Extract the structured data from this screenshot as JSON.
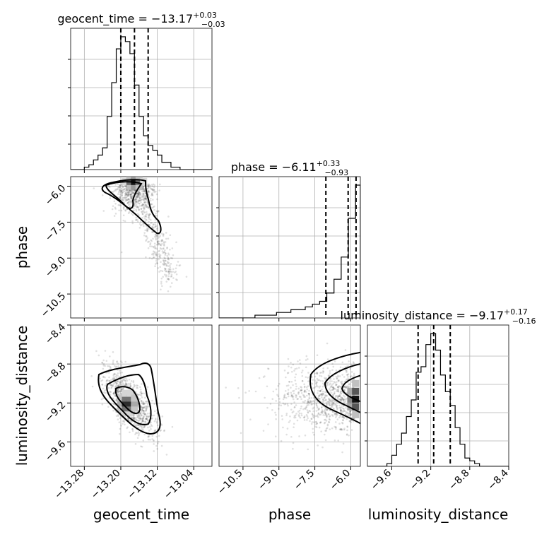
{
  "chart_data": {
    "type": "corner",
    "parameters": [
      "geocent_time",
      "phase",
      "luminosity_distance"
    ],
    "titles": [
      {
        "name": "geocent_time",
        "value": "−13.17",
        "upper": "+0.03",
        "lower": "−0.03"
      },
      {
        "name": "phase",
        "value": "−6.11",
        "upper": "+0.33",
        "lower": "−0.93"
      },
      {
        "name": "luminosity_distance",
        "value": "−9.17",
        "upper": "+0.17",
        "lower": "−0.16"
      }
    ],
    "axes": {
      "geocent_time": {
        "range": [
          -13.31,
          -13.0
        ],
        "ticks": [
          -13.28,
          -13.2,
          -13.12,
          -13.04
        ],
        "tick_labels": [
          "−13.28",
          "−13.20",
          "−13.12",
          "−13.04"
        ]
      },
      "phase": {
        "range": [
          -11.5,
          -5.6
        ],
        "ticks": [
          -10.5,
          -9.0,
          -7.5,
          -6.0
        ],
        "tick_labels": [
          "−10.5",
          "−9.0",
          "−7.5",
          "−6.0"
        ]
      },
      "luminosity_distance": {
        "range": [
          -9.85,
          -8.4
        ],
        "ticks": [
          -9.6,
          -9.2,
          -8.8,
          -8.4
        ],
        "tick_labels": [
          "−9.6",
          "−9.2",
          "−8.8",
          "−8.4"
        ]
      }
    },
    "quantiles": {
      "geocent_time": [
        -13.2,
        -13.17,
        -13.14
      ],
      "phase": [
        -7.04,
        -6.11,
        -5.78
      ],
      "luminosity_distance": [
        -9.33,
        -9.17,
        -9.0
      ]
    },
    "histograms": {
      "geocent_time": {
        "edges": [
          -13.31,
          -13.3,
          -13.29,
          -13.28,
          -13.27,
          -13.26,
          -13.25,
          -13.24,
          -13.23,
          -13.22,
          -13.21,
          -13.2,
          -13.19,
          -13.18,
          -13.17,
          -13.16,
          -13.15,
          -13.14,
          -13.13,
          -13.12,
          -13.11,
          -13.1,
          -13.09,
          -13.08,
          -13.07,
          -13.06,
          -13.05,
          -13.04,
          -13.03,
          -13.02,
          -13.01,
          -13.0
        ],
        "counts": [
          0,
          0,
          0,
          1,
          2,
          4,
          6,
          9,
          22,
          36,
          50,
          55,
          53,
          48,
          35,
          22,
          14,
          10,
          8,
          6,
          3,
          3,
          1,
          1,
          0,
          0,
          0,
          0,
          0,
          0,
          0
        ]
      },
      "phase": {
        "edges": [
          -11.5,
          -11.2,
          -10.9,
          -10.6,
          -10.3,
          -10.0,
          -9.7,
          -9.4,
          -9.1,
          -8.8,
          -8.5,
          -8.2,
          -7.9,
          -7.6,
          -7.3,
          -7.0,
          -6.7,
          -6.4,
          -6.1,
          -5.8,
          -5.6
        ],
        "counts": [
          0,
          0,
          0,
          0,
          0,
          1,
          1,
          1,
          2,
          2,
          3,
          3,
          4,
          5,
          6,
          9,
          14,
          22,
          36,
          48
        ]
      },
      "luminosity_distance": {
        "edges": [
          -9.85,
          -9.8,
          -9.75,
          -9.7,
          -9.65,
          -9.6,
          -9.55,
          -9.5,
          -9.45,
          -9.4,
          -9.35,
          -9.3,
          -9.25,
          -9.2,
          -9.15,
          -9.1,
          -9.05,
          -9.0,
          -8.95,
          -8.9,
          -8.85,
          -8.8,
          -8.75,
          -8.7,
          -8.65,
          -8.6,
          -8.55,
          -8.5,
          -8.45,
          -8.4
        ],
        "counts": [
          0,
          0,
          0,
          0,
          1,
          4,
          8,
          12,
          18,
          24,
          34,
          36,
          44,
          48,
          42,
          33,
          27,
          22,
          14,
          8,
          3,
          2,
          1,
          0,
          0,
          0,
          0,
          0,
          0
        ]
      }
    },
    "grid": true
  }
}
